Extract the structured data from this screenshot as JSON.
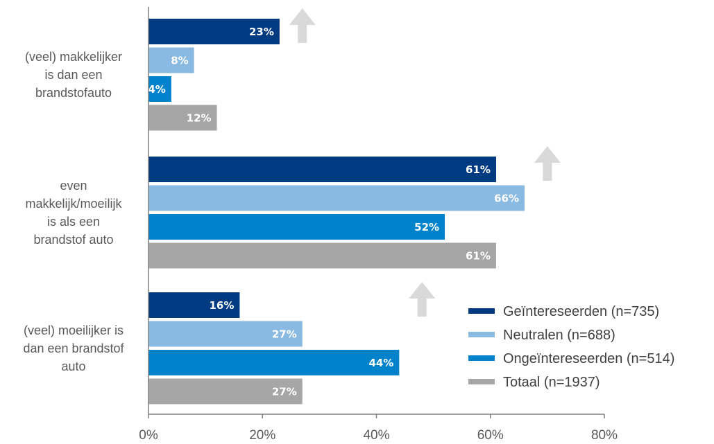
{
  "chart_data": {
    "type": "bar",
    "orientation": "horizontal",
    "categories": [
      [
        "(veel) makkelijker",
        "is dan een",
        "brandstofauto"
      ],
      [
        "even",
        "makkelijk/moeilijk",
        "is als een",
        "brandstof auto"
      ],
      [
        "(veel) moeilijker is",
        "dan een brandstof",
        "auto"
      ]
    ],
    "series": [
      {
        "name": "Geïntereseerden (n=735)",
        "color": "#003A80",
        "values": [
          23,
          61,
          16
        ],
        "labels": [
          "23%",
          "61%",
          "16%"
        ]
      },
      {
        "name": "Neutralen (n=688)",
        "color": "#8AB9E2",
        "values": [
          8,
          66,
          27
        ],
        "labels": [
          "8%",
          "66%",
          "27%"
        ]
      },
      {
        "name": "Ongeïntereseerden (n=514)",
        "color": "#0083CA",
        "values": [
          4,
          52,
          44
        ],
        "labels": [
          "4%",
          "52%",
          "44%"
        ]
      },
      {
        "name": "Totaal (n=1937)",
        "color": "#A6A6A6",
        "values": [
          12,
          61,
          27
        ],
        "labels": [
          "12%",
          "61%",
          "27%"
        ]
      }
    ],
    "xlim": [
      0,
      80
    ],
    "xticks": [
      0,
      20,
      40,
      60,
      80
    ],
    "xtick_labels": [
      "0%",
      "20%",
      "40%",
      "60%",
      "80%"
    ],
    "legend_position": "bottom-right",
    "annotations": [
      {
        "type": "arrow-up",
        "category": 0,
        "x": 27,
        "color": "#D9D9D9"
      },
      {
        "type": "arrow-up",
        "category": 1,
        "x": 70,
        "color": "#D9D9D9"
      },
      {
        "type": "arrow-up",
        "category": 2,
        "x": 48,
        "color": "#D9D9D9"
      }
    ]
  }
}
